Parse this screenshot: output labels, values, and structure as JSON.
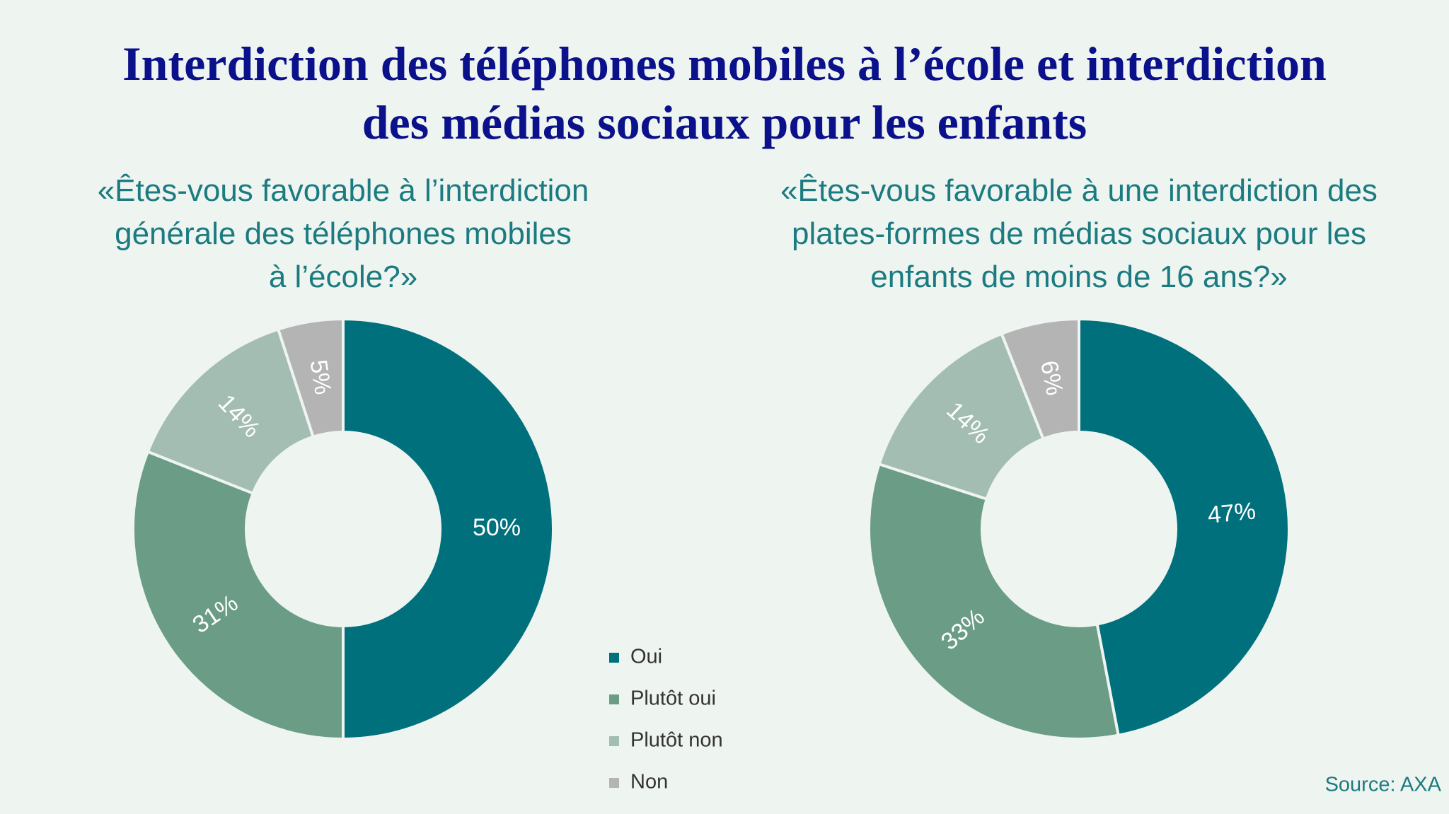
{
  "title": [
    "Interdiction des téléphones mobiles à l’école et interdiction",
    "des médias sociaux pour les enfants"
  ],
  "source": "Source: AXA",
  "chart_data": [
    {
      "type": "pie",
      "donut": true,
      "subtitle": [
        "«Êtes-vous favorable à l’interdiction",
        "générale des téléphones mobiles",
        "à l’école?»"
      ],
      "categories": [
        "Oui",
        "Plutôt oui",
        "Plutôt non",
        "Non"
      ],
      "values": [
        50,
        31,
        14,
        5
      ],
      "value_labels": [
        "50%",
        "31%",
        "14%",
        "5%"
      ],
      "colors": [
        "#00707c",
        "#6b9c86",
        "#a3bdb3",
        "#b4b4b4"
      ]
    },
    {
      "type": "pie",
      "donut": true,
      "subtitle": [
        "«Êtes-vous favorable à une interdiction des",
        "plates-formes de médias sociaux pour les",
        "enfants de moins de 16 ans?»"
      ],
      "categories": [
        "Oui",
        "Plutôt oui",
        "Plutôt non",
        "Non"
      ],
      "values": [
        47,
        33,
        14,
        6
      ],
      "value_labels": [
        "47%",
        "33%",
        "14%",
        "6%"
      ],
      "colors": [
        "#00707c",
        "#6b9c86",
        "#a3bdb3",
        "#b4b4b4"
      ]
    }
  ]
}
